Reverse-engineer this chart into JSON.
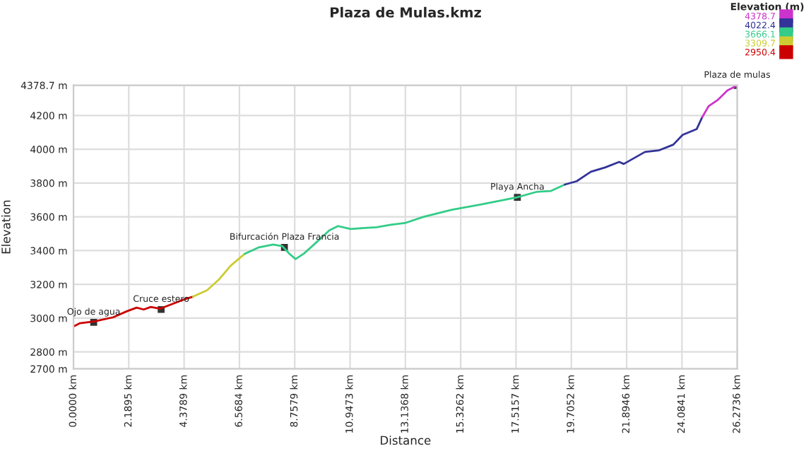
{
  "chart_data": {
    "type": "line",
    "title": "Plaza de Mulas.kmz",
    "xlabel": "Distance",
    "ylabel": "Elevation",
    "legend_title": "Elevation (m)",
    "series": [
      {
        "name": "2950.4",
        "color": "#cc0000",
        "x": [
          0,
          0.26,
          0.82,
          1.57,
          2.12,
          2.5,
          2.78,
          3.06,
          3.43,
          3.8,
          4.36,
          4.73
        ],
        "values": [
          2950,
          2970,
          2980,
          3005,
          3041,
          3062,
          3051,
          3066,
          3056,
          3077,
          3110,
          3127
        ]
      },
      {
        "name": "3309.7",
        "color": "#cccc33",
        "x": [
          4.73,
          5.29,
          5.76,
          6.22,
          6.78
        ],
        "values": [
          3127,
          3165,
          3229,
          3310,
          3381
        ]
      },
      {
        "name": "3666.1",
        "color": "#33cc88",
        "x": [
          6.78,
          7.34,
          7.9,
          8.27,
          8.55,
          8.79,
          9.11,
          9.58,
          10.13,
          10.47,
          10.97,
          11.44,
          12.0,
          12.56,
          13.12,
          13.86,
          14.98,
          16.1,
          17.55,
          18.34,
          18.9,
          19.45
        ],
        "values": [
          3381,
          3419,
          3436,
          3426,
          3381,
          3350,
          3381,
          3444,
          3520,
          3545,
          3528,
          3533,
          3538,
          3553,
          3563,
          3600,
          3642,
          3672,
          3715,
          3748,
          3753,
          3791
        ]
      },
      {
        "name": "4022.4",
        "color": "#333399",
        "x": [
          19.45,
          19.92,
          20.48,
          21.04,
          21.6,
          21.78,
          22.62,
          23.18,
          23.74,
          24.11,
          24.67,
          24.89
        ],
        "values": [
          3791,
          3811,
          3867,
          3892,
          3925,
          3913,
          3984,
          3994,
          4027,
          4085,
          4120,
          4191
        ]
      },
      {
        "name": "4378.7",
        "color": "#cc33cc",
        "x": [
          24.89,
          25.14,
          25.51,
          25.88,
          26.27
        ],
        "values": [
          4191,
          4255,
          4293,
          4348,
          4378
        ]
      }
    ],
    "xlim": [
      0,
      26.2736
    ],
    "xticks": [
      {
        "value": 0,
        "label": "0.0000 km"
      },
      {
        "value": 2.1895,
        "label": "2.1895 km"
      },
      {
        "value": 4.3789,
        "label": "4.3789 km"
      },
      {
        "value": 6.5684,
        "label": "6.5684 km"
      },
      {
        "value": 8.7579,
        "label": "8.7579 km"
      },
      {
        "value": 10.9473,
        "label": "10.9473 km"
      },
      {
        "value": 13.1368,
        "label": "13.1368 km"
      },
      {
        "value": 15.3262,
        "label": "15.3262 km"
      },
      {
        "value": 17.5157,
        "label": "17.5157 km"
      },
      {
        "value": 19.7052,
        "label": "19.7052 km"
      },
      {
        "value": 21.8946,
        "label": "21.8946 km"
      },
      {
        "value": 24.0841,
        "label": "24.0841 km"
      },
      {
        "value": 26.2736,
        "label": "26.2736 km"
      }
    ],
    "ylim": [
      2700,
      4378.7
    ],
    "yticks": [
      {
        "value": 2700,
        "label": "2700 m"
      },
      {
        "value": 2800,
        "label": "2800 m"
      },
      {
        "value": 3000,
        "label": "3000 m"
      },
      {
        "value": 3200,
        "label": "3200 m"
      },
      {
        "value": 3400,
        "label": "3400 m"
      },
      {
        "value": 3600,
        "label": "3600 m"
      },
      {
        "value": 3800,
        "label": "3800 m"
      },
      {
        "value": 4000,
        "label": "4000 m"
      },
      {
        "value": 4200,
        "label": "4200 m"
      },
      {
        "value": 4378.7,
        "label": "4378.7 m"
      }
    ],
    "annotations": [
      {
        "text": "Ojo de agua",
        "x": 0.8,
        "y": 2975
      },
      {
        "text": "Cruce estero",
        "x": 3.47,
        "y": 3051
      },
      {
        "text": "Bifurcación Plaza Francia",
        "x": 8.35,
        "y": 3419
      },
      {
        "text": "Playa Ancha",
        "x": 17.57,
        "y": 3715
      },
      {
        "text": "Plaza de mulas",
        "x": 26.27,
        "y": 4378
      }
    ],
    "grid": true,
    "legend": "top right",
    "marker": "none",
    "line_style": "solid"
  }
}
